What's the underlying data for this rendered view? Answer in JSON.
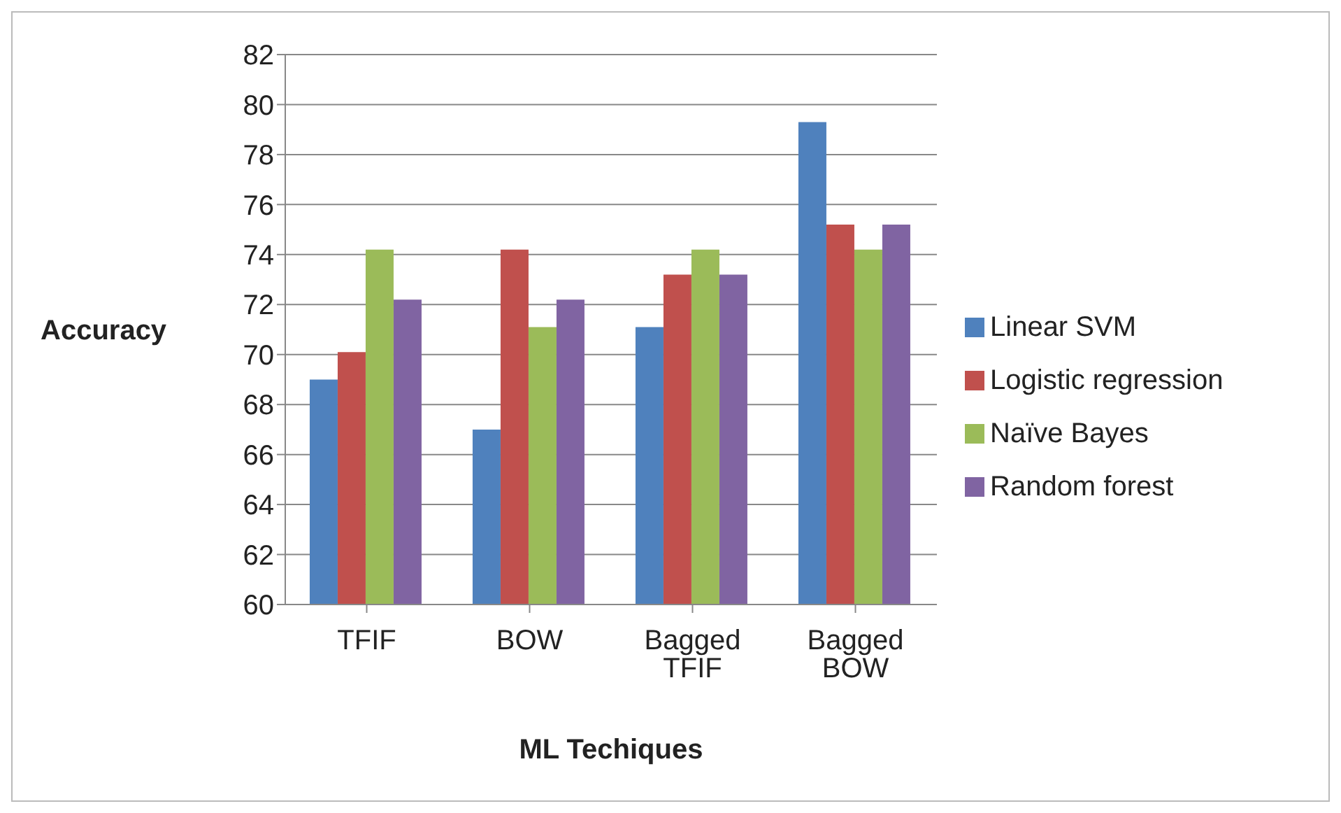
{
  "chart_data": {
    "type": "bar",
    "xlabel": "ML Techiques",
    "ylabel": "Accuracy",
    "categories": [
      "TFIF",
      "BOW",
      "Bagged TFIF",
      "Bagged BOW"
    ],
    "series": [
      {
        "name": "Linear SVM",
        "color": "#4f81bd",
        "values": [
          69,
          67,
          71.1,
          79.3
        ]
      },
      {
        "name": "Logistic regression",
        "color": "#c0504d",
        "values": [
          70.1,
          74.2,
          73.2,
          75.2
        ]
      },
      {
        "name": "Naïve Bayes",
        "color": "#9bbb59",
        "values": [
          74.2,
          71.1,
          74.2,
          74.2
        ]
      },
      {
        "name": "Random forest",
        "color": "#8064a2",
        "values": [
          72.2,
          72.2,
          73.2,
          75.2
        ]
      }
    ],
    "ylim": [
      60,
      82
    ],
    "yticks": [
      60,
      62,
      64,
      66,
      68,
      70,
      72,
      74,
      76,
      78,
      80,
      82
    ],
    "grid": "y",
    "legend": "right"
  }
}
